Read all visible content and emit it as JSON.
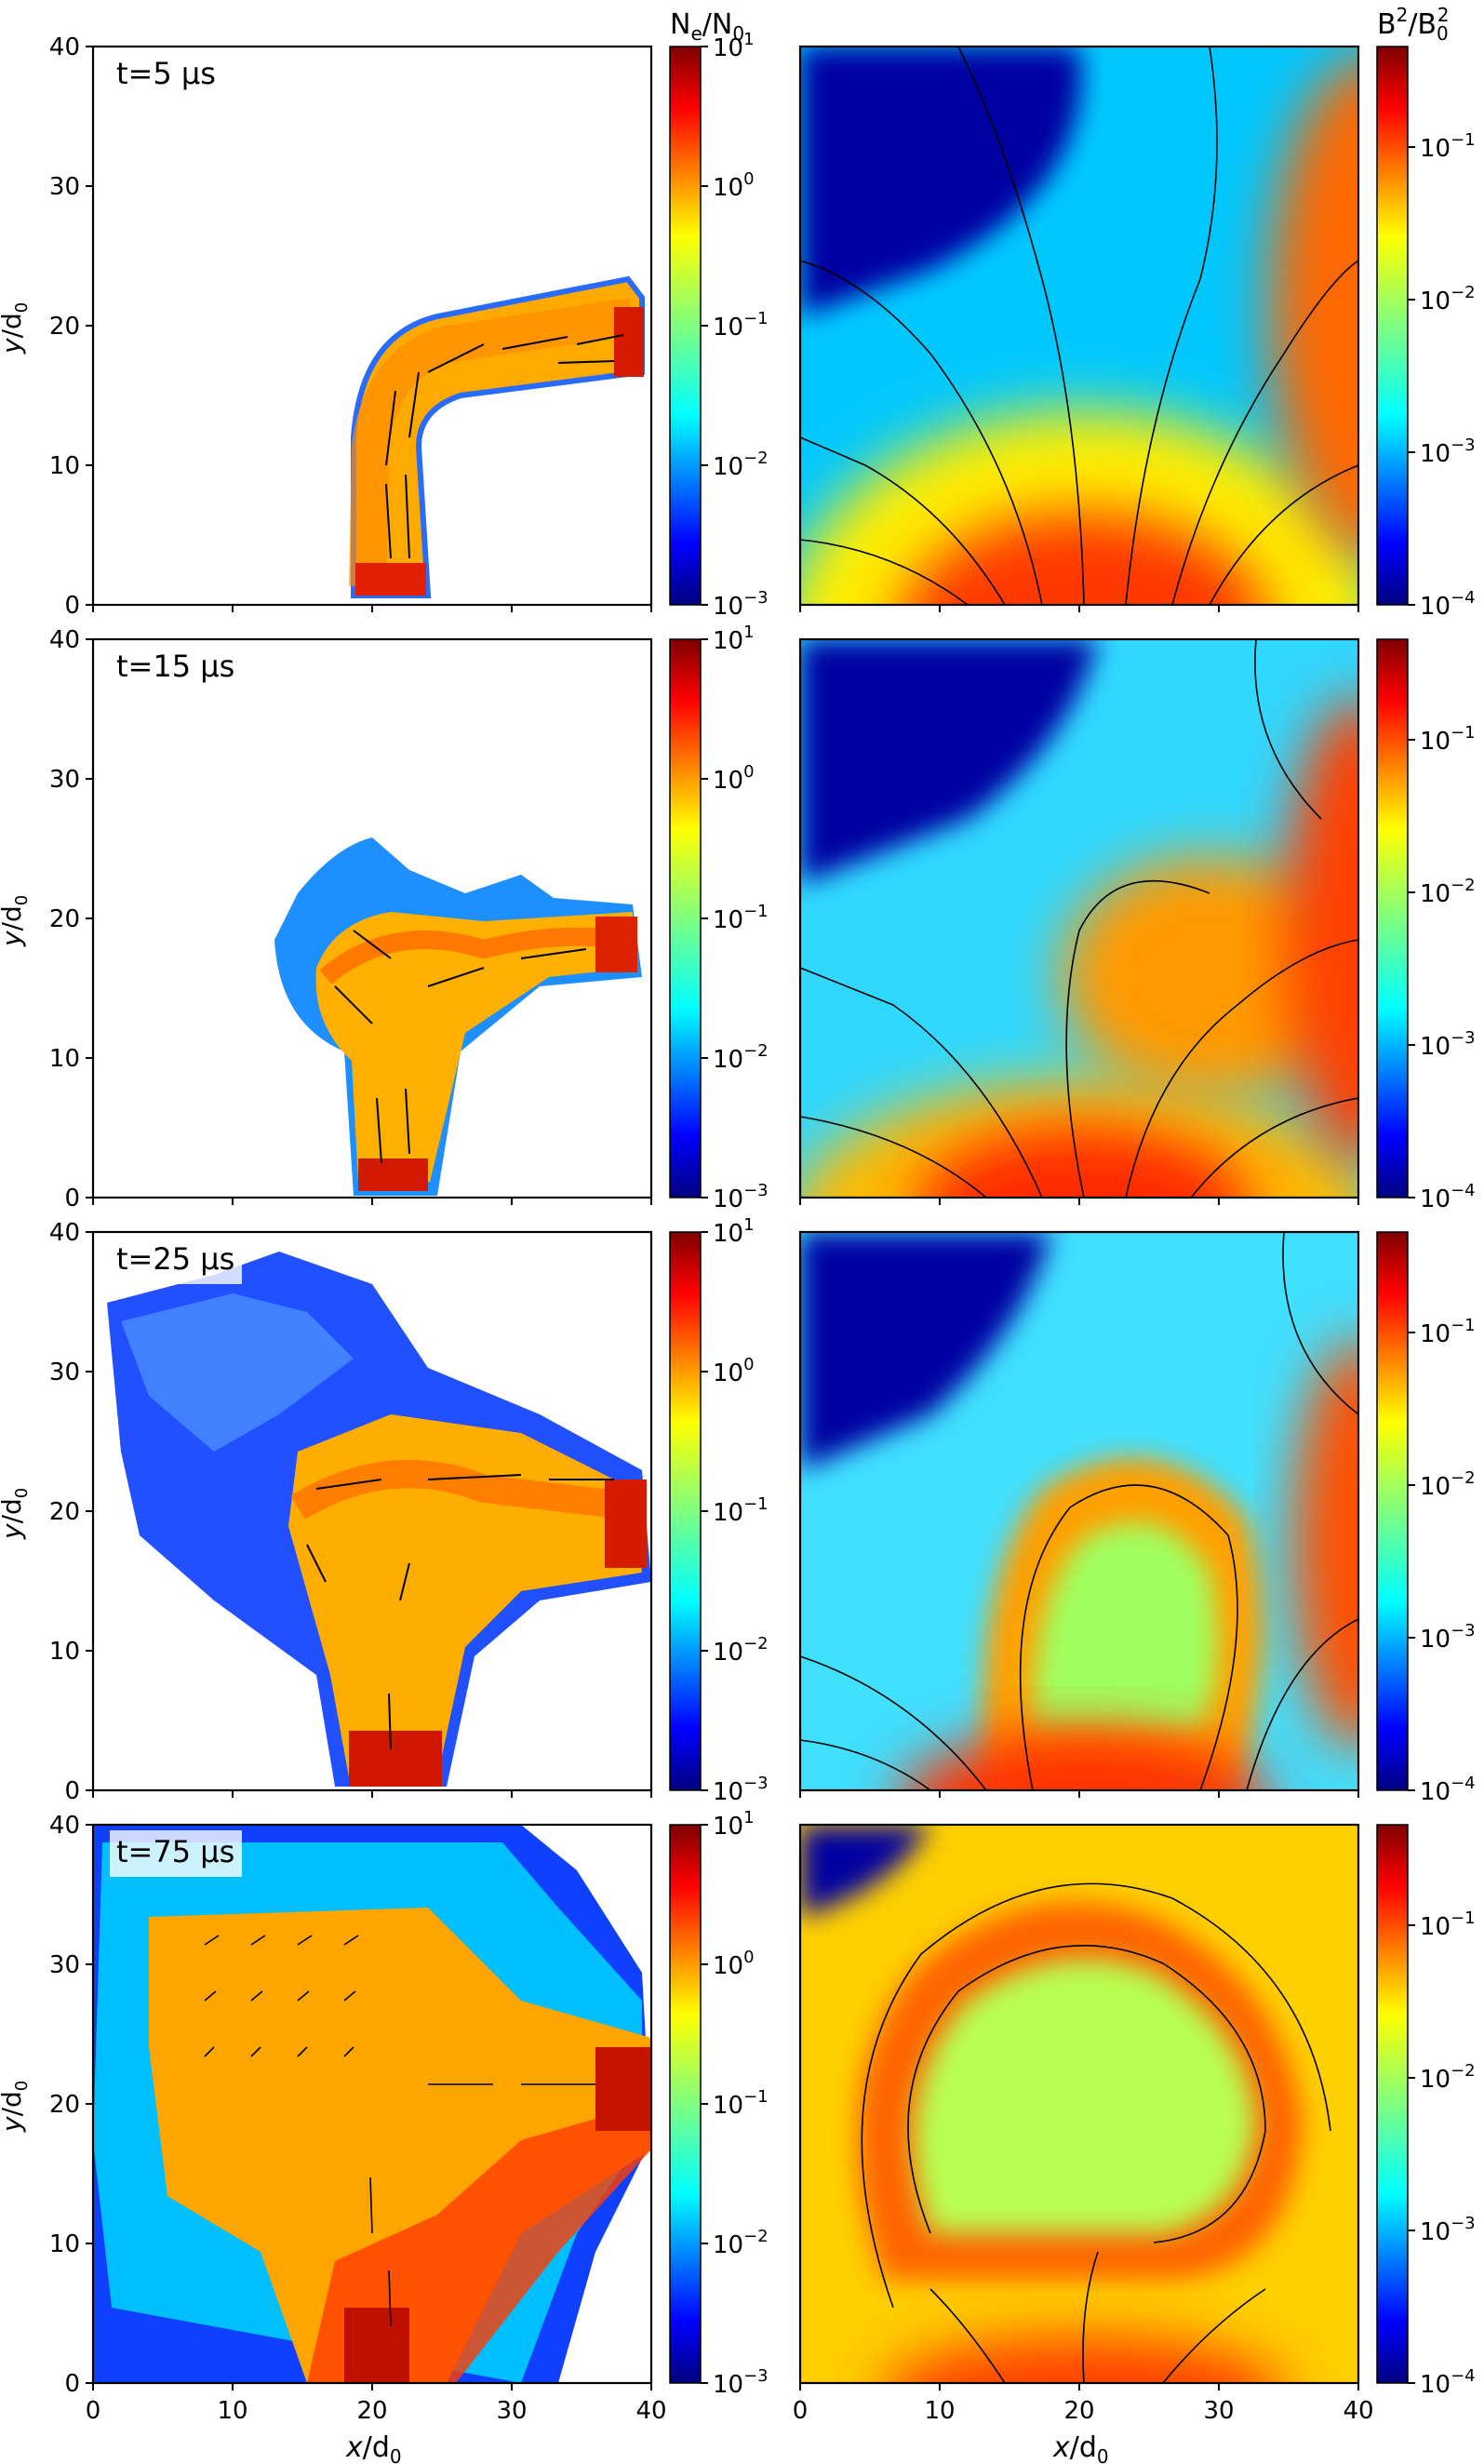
{
  "figure": {
    "left_colorbar_label": {
      "base": "N",
      "sub1": "e",
      "mid": "/N",
      "sub2": "0"
    },
    "right_colorbar_label": {
      "base": "B",
      "sup1": "2",
      "mid": "/B",
      "sub2": "0",
      "sup2": "2"
    },
    "x_label": {
      "italic": "x",
      "mid": "/d",
      "sub": "0"
    },
    "y_label": {
      "italic": "y",
      "mid": "/d",
      "sub": "0"
    }
  },
  "chart_data": [
    {
      "type": "heatmap",
      "quantity": "N_e/N_0",
      "panel_label": "t=5 μs",
      "xlim": [
        0,
        40
      ],
      "ylim": [
        0,
        40
      ],
      "x_ticks": [
        "0",
        "10",
        "20",
        "30",
        "40"
      ],
      "y_ticks": [
        "0",
        "10",
        "20",
        "30",
        "40"
      ],
      "colorbar": {
        "scale": "log",
        "range": [
          0.001,
          10
        ],
        "ticks": [
          {
            "b": "10",
            "e": "−3"
          },
          {
            "b": "10",
            "e": "−2"
          },
          {
            "b": "10",
            "e": "−1"
          },
          {
            "b": "10",
            "e": "0"
          },
          {
            "b": "10",
            "e": "1"
          }
        ],
        "colormap": "jet"
      },
      "overlay": "velocity arrows"
    },
    {
      "type": "heatmap",
      "quantity": "B^2/B_0^2",
      "xlim": [
        0,
        40
      ],
      "ylim": [
        0,
        40
      ],
      "colorbar": {
        "scale": "log",
        "range": [
          0.0001,
          0.5
        ],
        "ticks": [
          {
            "b": "10",
            "e": "−4"
          },
          {
            "b": "10",
            "e": "−3"
          },
          {
            "b": "10",
            "e": "−2"
          },
          {
            "b": "10",
            "e": "−1"
          }
        ],
        "colormap": "jet"
      },
      "overlay": "magnetic field streamlines"
    },
    {
      "type": "heatmap",
      "quantity": "N_e/N_0",
      "panel_label": "t=15 μs",
      "xlim": [
        0,
        40
      ],
      "ylim": [
        0,
        40
      ]
    },
    {
      "type": "heatmap",
      "quantity": "B^2/B_0^2",
      "xlim": [
        0,
        40
      ],
      "ylim": [
        0,
        40
      ]
    },
    {
      "type": "heatmap",
      "quantity": "N_e/N_0",
      "panel_label": "t=25 μs",
      "xlim": [
        0,
        40
      ],
      "ylim": [
        0,
        40
      ]
    },
    {
      "type": "heatmap",
      "quantity": "B^2/B_0^2",
      "xlim": [
        0,
        40
      ],
      "ylim": [
        0,
        40
      ]
    },
    {
      "type": "heatmap",
      "quantity": "N_e/N_0",
      "panel_label": "t=75 μs",
      "xlim": [
        0,
        40
      ],
      "ylim": [
        0,
        40
      ]
    },
    {
      "type": "heatmap",
      "quantity": "B^2/B_0^2",
      "xlim": [
        0,
        40
      ],
      "ylim": [
        0,
        40
      ]
    }
  ],
  "panels": {
    "labels": [
      "t=5 μs",
      "t=15 μs",
      "t=25 μs",
      "t=75 μs"
    ],
    "axis_ticks": [
      "0",
      "10",
      "20",
      "30",
      "40"
    ],
    "ne_colorbar_ticks": [
      {
        "b": "10",
        "e": "−3"
      },
      {
        "b": "10",
        "e": "−2"
      },
      {
        "b": "10",
        "e": "−1"
      },
      {
        "b": "10",
        "e": "0"
      },
      {
        "b": "10",
        "e": "1"
      }
    ],
    "b_colorbar_ticks": [
      {
        "b": "10",
        "e": "−4"
      },
      {
        "b": "10",
        "e": "−3"
      },
      {
        "b": "10",
        "e": "−2"
      },
      {
        "b": "10",
        "e": "−1"
      }
    ]
  },
  "colors": {
    "jet": [
      "#00007f",
      "#0000ff",
      "#007fff",
      "#00ffff",
      "#7fff7f",
      "#ffff00",
      "#ff7f00",
      "#ff0000",
      "#7f0000"
    ]
  }
}
